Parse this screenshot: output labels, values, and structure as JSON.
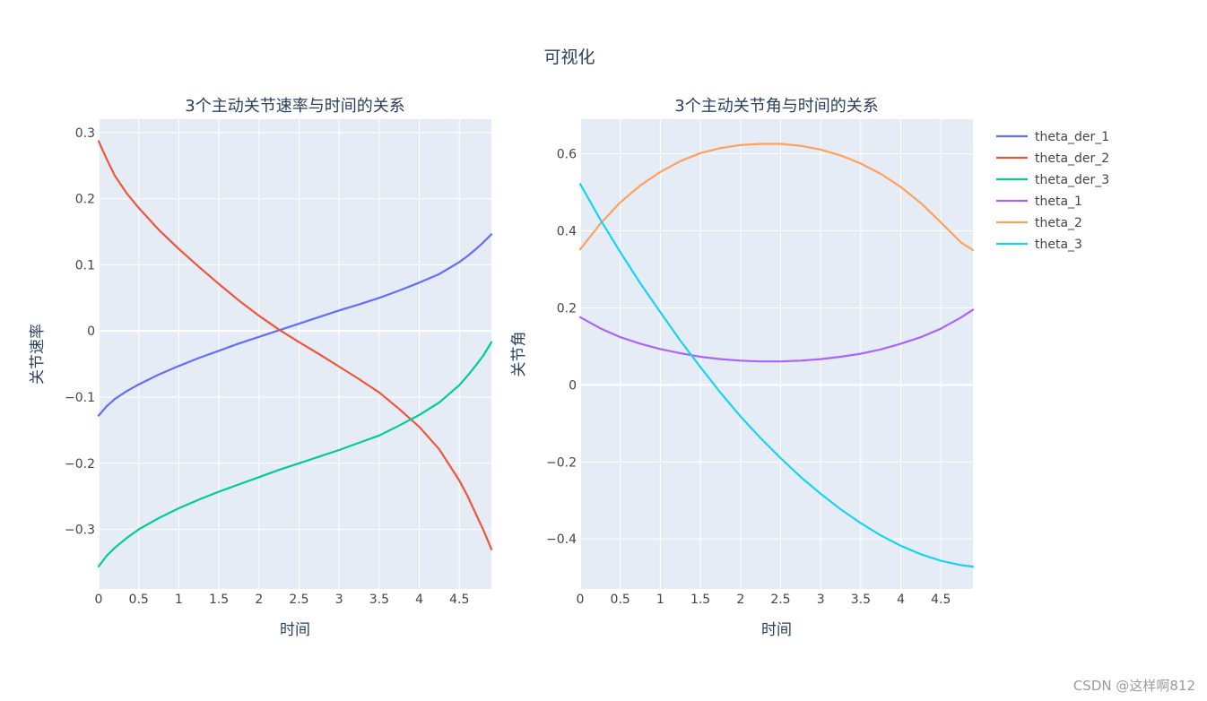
{
  "title": "可视化",
  "watermark": "CSDN @这样啊812",
  "colors": {
    "plot_bg": "#e5ecf6",
    "grid": "#ffffff",
    "theta_der_1": "#636efa",
    "theta_der_2": "#ef553b",
    "theta_der_3": "#00cc96",
    "theta_1": "#ab63fa",
    "theta_2": "#ffa15a",
    "theta_3": "#19d3f3"
  },
  "legend": [
    {
      "name": "theta_der_1",
      "color": "#636efa"
    },
    {
      "name": "theta_der_2",
      "color": "#ef553b"
    },
    {
      "name": "theta_der_3",
      "color": "#00cc96"
    },
    {
      "name": "theta_1",
      "color": "#ab63fa"
    },
    {
      "name": "theta_2",
      "color": "#ffa15a"
    },
    {
      "name": "theta_3",
      "color": "#19d3f3"
    }
  ],
  "chart_data": [
    {
      "type": "line",
      "title": "3个主动关节速率与时间的关系",
      "xlabel": "时间",
      "ylabel": "关节速率",
      "xlim": [
        0,
        4.9
      ],
      "ylim": [
        -0.39,
        0.32
      ],
      "xticks": [
        0,
        0.5,
        1,
        1.5,
        2,
        2.5,
        3,
        3.5,
        4,
        4.5
      ],
      "xtick_labels": [
        "0",
        "0.5",
        "1",
        "1.5",
        "2",
        "2.5",
        "3",
        "3.5",
        "4",
        "4.5"
      ],
      "yticks": [
        -0.3,
        -0.2,
        -0.1,
        0,
        0.1,
        0.2,
        0.3
      ],
      "ytick_labels": [
        "−0.3",
        "−0.2",
        "−0.1",
        "0",
        "0.1",
        "0.2",
        "0.3"
      ],
      "grid": true,
      "x": [
        0,
        0.1,
        0.2,
        0.35,
        0.5,
        0.75,
        1.0,
        1.25,
        1.5,
        1.75,
        2.0,
        2.25,
        2.5,
        2.75,
        3.0,
        3.25,
        3.5,
        3.75,
        4.0,
        4.25,
        4.5,
        4.6,
        4.7,
        4.8,
        4.9
      ],
      "series": [
        {
          "name": "theta_der_1",
          "color": "#636efa",
          "values": [
            -0.128,
            -0.114,
            -0.103,
            -0.091,
            -0.081,
            -0.066,
            -0.053,
            -0.041,
            -0.03,
            -0.019,
            -0.009,
            0.001,
            0.011,
            0.021,
            0.031,
            0.04,
            0.05,
            0.061,
            0.073,
            0.086,
            0.104,
            0.113,
            0.123,
            0.134,
            0.146
          ]
        },
        {
          "name": "theta_der_2",
          "color": "#ef553b",
          "values": [
            0.287,
            0.26,
            0.235,
            0.208,
            0.186,
            0.153,
            0.124,
            0.097,
            0.071,
            0.046,
            0.023,
            0.002,
            -0.017,
            -0.035,
            -0.054,
            -0.073,
            -0.093,
            -0.118,
            -0.145,
            -0.179,
            -0.226,
            -0.249,
            -0.275,
            -0.301,
            -0.33
          ]
        },
        {
          "name": "theta_der_3",
          "color": "#00cc96",
          "values": [
            -0.356,
            -0.34,
            -0.328,
            -0.313,
            -0.3,
            -0.283,
            -0.268,
            -0.255,
            -0.243,
            -0.232,
            -0.221,
            -0.21,
            -0.2,
            -0.19,
            -0.18,
            -0.169,
            -0.158,
            -0.143,
            -0.127,
            -0.108,
            -0.082,
            -0.068,
            -0.053,
            -0.037,
            -0.017
          ]
        }
      ]
    },
    {
      "type": "line",
      "title": "3个主动关节角与时间的关系",
      "xlabel": "时间",
      "ylabel": "关节角",
      "xlim": [
        0,
        4.9
      ],
      "ylim": [
        -0.53,
        0.69
      ],
      "xticks": [
        0,
        0.5,
        1,
        1.5,
        2,
        2.5,
        3,
        3.5,
        4,
        4.5
      ],
      "xtick_labels": [
        "0",
        "0.5",
        "1",
        "1.5",
        "2",
        "2.5",
        "3",
        "3.5",
        "4",
        "4.5"
      ],
      "yticks": [
        -0.4,
        -0.2,
        0,
        0.2,
        0.4,
        0.6
      ],
      "ytick_labels": [
        "−0.4",
        "−0.2",
        "0",
        "0.2",
        "0.4",
        "0.6"
      ],
      "grid": true,
      "x": [
        0,
        0.25,
        0.5,
        0.75,
        1.0,
        1.25,
        1.5,
        1.75,
        2.0,
        2.25,
        2.5,
        2.75,
        3.0,
        3.25,
        3.5,
        3.75,
        4.0,
        4.25,
        4.5,
        4.75,
        4.9
      ],
      "series": [
        {
          "name": "theta_1",
          "color": "#ab63fa",
          "values": [
            0.176,
            0.147,
            0.124,
            0.107,
            0.093,
            0.082,
            0.073,
            0.067,
            0.063,
            0.061,
            0.061,
            0.063,
            0.067,
            0.073,
            0.081,
            0.092,
            0.107,
            0.124,
            0.146,
            0.175,
            0.195
          ]
        },
        {
          "name": "theta_2",
          "color": "#ffa15a",
          "values": [
            0.352,
            0.418,
            0.474,
            0.518,
            0.553,
            0.581,
            0.602,
            0.615,
            0.623,
            0.626,
            0.626,
            0.621,
            0.611,
            0.596,
            0.575,
            0.548,
            0.514,
            0.472,
            0.422,
            0.37,
            0.35
          ]
        },
        {
          "name": "theta_3",
          "color": "#19d3f3",
          "values": [
            0.522,
            0.43,
            0.345,
            0.264,
            0.189,
            0.115,
            0.046,
            -0.02,
            -0.082,
            -0.138,
            -0.19,
            -0.239,
            -0.283,
            -0.323,
            -0.359,
            -0.391,
            -0.418,
            -0.44,
            -0.457,
            -0.468,
            -0.472
          ]
        }
      ]
    }
  ]
}
